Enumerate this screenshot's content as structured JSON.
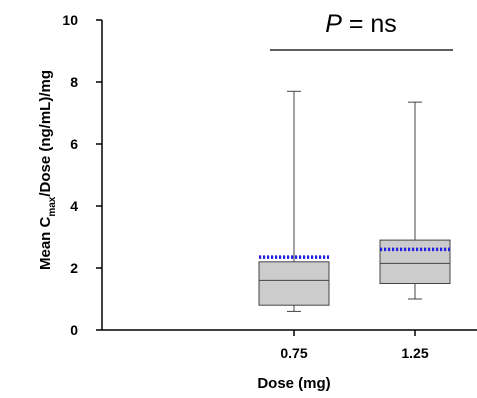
{
  "chart_data": {
    "type": "box",
    "categories": [
      "0.75",
      "1.25"
    ],
    "boxes": [
      {
        "category": "0.75",
        "whisker_low": 0.6,
        "q1": 0.8,
        "median": 1.6,
        "q3": 2.2,
        "whisker_high": 7.7,
        "mean": 2.35
      },
      {
        "category": "1.25",
        "whisker_low": 1.0,
        "q1": 1.5,
        "median": 2.15,
        "q3": 2.9,
        "whisker_high": 7.35,
        "mean": 2.6
      }
    ],
    "xlabel": "Dose (mg)",
    "ylabel_parts": {
      "pre": "Mean C",
      "sub": "max",
      "post": "/Dose (ng/mL)/mg"
    },
    "ylim": [
      0,
      10
    ],
    "yticks": [
      "0",
      "2",
      "4",
      "6",
      "8",
      "10"
    ],
    "annotation": {
      "p_letter": "P",
      "p_rest": " = ns"
    },
    "colors": {
      "box_fill": "#cccccc",
      "box_stroke": "#444444",
      "mean_line": "#1f1fe0",
      "axis": "#000000"
    },
    "grid": false
  }
}
